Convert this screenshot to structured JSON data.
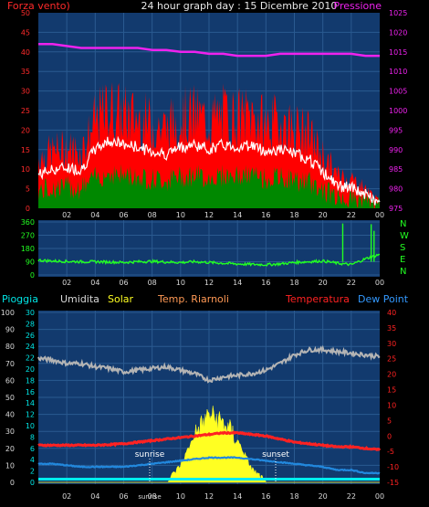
{
  "title": "24 hour graph day : 15 Dicembre 2010",
  "top_panel": {
    "left_label": "Forza vento)",
    "right_label": "Pressione",
    "left_ticks": [
      "0",
      "5",
      "10",
      "15",
      "20",
      "25",
      "30",
      "35",
      "40",
      "45",
      "50"
    ],
    "right_ticks": [
      "975",
      "980",
      "985",
      "990",
      "995",
      "1000",
      "1005",
      "1010",
      "1015",
      "1020",
      "1025"
    ]
  },
  "wind_panel": {
    "left_ticks": [
      "0",
      "90",
      "180",
      "270",
      "360"
    ],
    "compass": [
      "N",
      "W",
      "S",
      "E",
      "N"
    ]
  },
  "bottom_panel": {
    "legend": [
      "Pioggia",
      "Umidita",
      "Solar",
      "Temp. Riarnoli",
      "Temperatura",
      "Dew Point"
    ],
    "humidity_ticks": [
      "0",
      "10",
      "20",
      "30",
      "40",
      "50",
      "60",
      "70",
      "80",
      "90",
      "100"
    ],
    "rain_ticks": [
      "0",
      "2",
      "4",
      "6",
      "8",
      "10",
      "12",
      "14",
      "16",
      "18",
      "20",
      "22",
      "24",
      "26",
      "28",
      "30"
    ],
    "temp_ticks": [
      "-15",
      "-10",
      "-5",
      "0",
      "5",
      "10",
      "15",
      "20",
      "25",
      "30",
      "35",
      "40"
    ],
    "sunrise_label": "sunrise",
    "sunset_label": "sunset"
  },
  "x_ticks": [
    "02",
    "04",
    "06",
    "08",
    "10",
    "12",
    "14",
    "16",
    "18",
    "20",
    "22",
    "00"
  ],
  "x_sunrise_tick": "sunrise",
  "colors": {
    "panel_bg": "#123a6e",
    "grid": "#2a5a90",
    "gust": "#ff0000",
    "avg_wind": "#ffffff",
    "wind_base": "#008800",
    "pressure": "#ee22ee",
    "direction": "#22ff22",
    "humidity": "#b4b4b4",
    "temperature": "#ff2222",
    "dew_point": "#2288dd",
    "solar": "#ffff22",
    "rain": "#00eeee"
  },
  "chart_data": [
    {
      "type": "line",
      "xlabel": "",
      "ylabel": "Forza vento)",
      "ylim": [
        0,
        50
      ],
      "y2label": "Pressione",
      "y2lim": [
        975,
        1025
      ],
      "x": [
        0,
        1,
        2,
        3,
        4,
        5,
        6,
        7,
        8,
        9,
        10,
        11,
        12,
        13,
        14,
        15,
        16,
        17,
        18,
        19,
        20,
        21,
        22,
        23,
        24
      ],
      "series": [
        {
          "name": "Forza vento)",
          "values": [
            15,
            17,
            18,
            17,
            26,
            30,
            28,
            27,
            25,
            24,
            27,
            28,
            26,
            28,
            27,
            28,
            25,
            26,
            24,
            22,
            16,
            10,
            9,
            6,
            2
          ]
        },
        {
          "name": "Pressione",
          "values": [
            1017,
            1017,
            1016.5,
            1016,
            1016,
            1016,
            1016,
            1016,
            1015.5,
            1015.5,
            1015,
            1015,
            1014.5,
            1014.5,
            1014,
            1014,
            1014,
            1014.5,
            1014.5,
            1014.5,
            1014.5,
            1014.5,
            1014.5,
            1014,
            1014
          ]
        }
      ]
    },
    {
      "type": "line",
      "ylabel": "",
      "ylim": [
        0,
        360
      ],
      "x": [
        0,
        1,
        2,
        3,
        4,
        5,
        6,
        7,
        8,
        9,
        10,
        11,
        12,
        13,
        14,
        15,
        16,
        17,
        18,
        19,
        20,
        21,
        22,
        23,
        24
      ],
      "series": [
        {
          "name": "",
          "values": [
            100,
            95,
            92,
            90,
            90,
            88,
            85,
            90,
            92,
            88,
            85,
            90,
            85,
            80,
            75,
            72,
            70,
            75,
            85,
            90,
            95,
            80,
            70,
            110,
            140
          ]
        }
      ]
    },
    {
      "type": "line",
      "ylim": [
        0,
        100
      ],
      "y2lim": [
        -15,
        40
      ],
      "x": [
        0,
        1,
        2,
        3,
        4,
        5,
        6,
        7,
        8,
        9,
        10,
        11,
        12,
        13,
        14,
        15,
        16,
        17,
        18,
        19,
        20,
        21,
        22,
        23,
        24
      ],
      "series": [
        {
          "name": "Umidita",
          "values": [
            73,
            72,
            70,
            70,
            68,
            67,
            65,
            66,
            67,
            68,
            66,
            64,
            60,
            62,
            63,
            64,
            66,
            70,
            75,
            78,
            78,
            77,
            76,
            75,
            74
          ]
        },
        {
          "name": "Temperatura",
          "values": [
            -3,
            -3,
            -3,
            -3,
            -3,
            -2.8,
            -2.5,
            -2,
            -1.5,
            -1,
            -0.5,
            0,
            0.5,
            1,
            1,
            0.5,
            0,
            -1,
            -2,
            -2.5,
            -3,
            -3.5,
            -3.5,
            -4,
            -4.5
          ]
        },
        {
          "name": "Dew Point",
          "values": [
            -9,
            -9,
            -9.5,
            -10,
            -10,
            -10,
            -10,
            -9.5,
            -9,
            -8.5,
            -8,
            -7.5,
            -7,
            -7,
            -7,
            -7.5,
            -8,
            -8.5,
            -9,
            -9.5,
            -10,
            -11,
            -11,
            -12,
            -12
          ]
        },
        {
          "name": "Solar",
          "values": [
            0,
            0,
            0,
            0,
            0,
            0,
            0,
            0,
            0,
            0,
            10,
            28,
            40,
            35,
            25,
            8,
            0,
            0,
            0,
            0,
            0,
            0,
            0,
            0,
            0
          ]
        },
        {
          "name": "Pioggia",
          "values": [
            0,
            0,
            0,
            0,
            0,
            0,
            0,
            0,
            0,
            0,
            0,
            0,
            0,
            0,
            0,
            0,
            0,
            0,
            0,
            0,
            0,
            0,
            0,
            0,
            0
          ]
        }
      ]
    }
  ]
}
